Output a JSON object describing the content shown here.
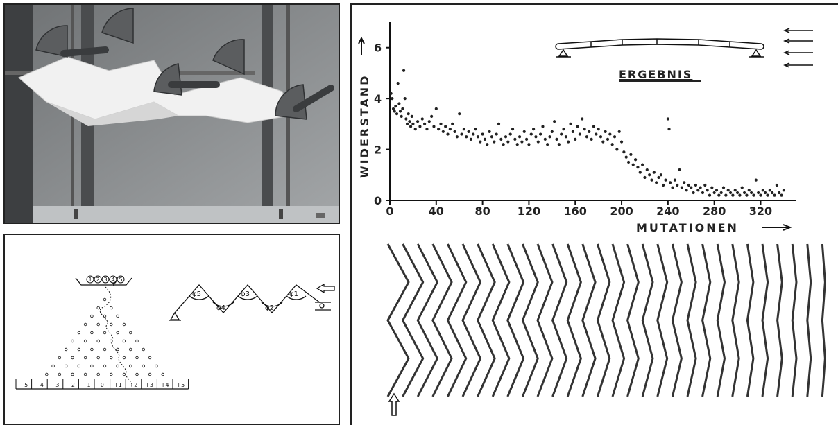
{
  "chart_data": {
    "type": "scatter",
    "title": "ERGEBNIS",
    "xlabel": "MUTATIONEN",
    "ylabel": "WIDERSTAND",
    "xlim": [
      0,
      345
    ],
    "ylim": [
      0,
      7
    ],
    "xticks": [
      "0",
      "40",
      "80",
      "120",
      "160",
      "200",
      "240",
      "280",
      "320"
    ],
    "yticks": [
      "0",
      "2",
      "4",
      "6"
    ],
    "series": [
      {
        "points": [
          [
            1,
            4.2
          ],
          [
            2,
            4.0
          ],
          [
            3,
            3.6
          ],
          [
            4,
            3.5
          ],
          [
            5,
            3.7
          ],
          [
            6,
            3.4
          ],
          [
            7,
            4.6
          ],
          [
            8,
            3.8
          ],
          [
            9,
            3.5
          ],
          [
            10,
            3.3
          ],
          [
            11,
            3.6
          ],
          [
            12,
            5.1
          ],
          [
            13,
            4.0
          ],
          [
            14,
            3.2
          ],
          [
            15,
            3.0
          ],
          [
            16,
            3.4
          ],
          [
            17,
            3.1
          ],
          [
            18,
            2.9
          ],
          [
            19,
            3.3
          ],
          [
            20,
            3.0
          ],
          [
            22,
            2.8
          ],
          [
            24,
            3.1
          ],
          [
            26,
            2.9
          ],
          [
            28,
            3.2
          ],
          [
            30,
            3.0
          ],
          [
            32,
            2.8
          ],
          [
            34,
            3.1
          ],
          [
            36,
            3.3
          ],
          [
            38,
            2.9
          ],
          [
            40,
            3.6
          ],
          [
            42,
            2.8
          ],
          [
            44,
            3.0
          ],
          [
            46,
            2.7
          ],
          [
            48,
            2.9
          ],
          [
            50,
            2.6
          ],
          [
            52,
            2.8
          ],
          [
            54,
            3.0
          ],
          [
            56,
            2.7
          ],
          [
            58,
            2.5
          ],
          [
            60,
            3.4
          ],
          [
            62,
            2.6
          ],
          [
            64,
            2.8
          ],
          [
            66,
            2.5
          ],
          [
            68,
            2.7
          ],
          [
            70,
            2.4
          ],
          [
            72,
            2.6
          ],
          [
            74,
            2.8
          ],
          [
            76,
            2.5
          ],
          [
            78,
            2.3
          ],
          [
            80,
            2.6
          ],
          [
            82,
            2.4
          ],
          [
            84,
            2.2
          ],
          [
            86,
            2.7
          ],
          [
            88,
            2.5
          ],
          [
            90,
            2.3
          ],
          [
            92,
            2.6
          ],
          [
            94,
            3.0
          ],
          [
            96,
            2.4
          ],
          [
            98,
            2.2
          ],
          [
            100,
            2.5
          ],
          [
            102,
            2.3
          ],
          [
            104,
            2.6
          ],
          [
            106,
            2.8
          ],
          [
            108,
            2.4
          ],
          [
            110,
            2.2
          ],
          [
            112,
            2.5
          ],
          [
            114,
            2.3
          ],
          [
            116,
            2.7
          ],
          [
            118,
            2.4
          ],
          [
            120,
            2.2
          ],
          [
            122,
            2.6
          ],
          [
            124,
            2.8
          ],
          [
            126,
            2.5
          ],
          [
            128,
            2.3
          ],
          [
            130,
            2.6
          ],
          [
            132,
            2.9
          ],
          [
            134,
            2.4
          ],
          [
            136,
            2.2
          ],
          [
            138,
            2.5
          ],
          [
            140,
            2.7
          ],
          [
            142,
            3.1
          ],
          [
            144,
            2.4
          ],
          [
            146,
            2.2
          ],
          [
            148,
            2.6
          ],
          [
            150,
            2.8
          ],
          [
            152,
            2.5
          ],
          [
            154,
            2.3
          ],
          [
            156,
            3.0
          ],
          [
            158,
            2.7
          ],
          [
            160,
            2.4
          ],
          [
            162,
            2.9
          ],
          [
            164,
            2.6
          ],
          [
            166,
            3.2
          ],
          [
            168,
            2.8
          ],
          [
            170,
            2.5
          ],
          [
            172,
            2.7
          ],
          [
            174,
            2.4
          ],
          [
            176,
            2.9
          ],
          [
            178,
            2.6
          ],
          [
            180,
            2.8
          ],
          [
            182,
            2.5
          ],
          [
            184,
            2.3
          ],
          [
            186,
            2.7
          ],
          [
            188,
            2.4
          ],
          [
            190,
            2.6
          ],
          [
            192,
            2.2
          ],
          [
            194,
            2.5
          ],
          [
            196,
            2.0
          ],
          [
            198,
            2.7
          ],
          [
            200,
            2.3
          ],
          [
            202,
            1.9
          ],
          [
            204,
            1.7
          ],
          [
            206,
            1.5
          ],
          [
            208,
            1.8
          ],
          [
            210,
            1.4
          ],
          [
            212,
            1.6
          ],
          [
            214,
            1.3
          ],
          [
            216,
            1.1
          ],
          [
            218,
            1.4
          ],
          [
            220,
            0.9
          ],
          [
            222,
            1.2
          ],
          [
            224,
            1.0
          ],
          [
            226,
            0.8
          ],
          [
            228,
            1.1
          ],
          [
            230,
            0.7
          ],
          [
            232,
            0.9
          ],
          [
            234,
            1.0
          ],
          [
            236,
            0.6
          ],
          [
            238,
            0.8
          ],
          [
            240,
            3.2
          ],
          [
            241,
            2.8
          ],
          [
            242,
            0.7
          ],
          [
            244,
            0.5
          ],
          [
            246,
            0.8
          ],
          [
            248,
            0.6
          ],
          [
            250,
            1.2
          ],
          [
            252,
            0.5
          ],
          [
            254,
            0.7
          ],
          [
            256,
            0.4
          ],
          [
            258,
            0.6
          ],
          [
            260,
            0.5
          ],
          [
            262,
            0.3
          ],
          [
            264,
            0.6
          ],
          [
            266,
            0.4
          ],
          [
            268,
            0.5
          ],
          [
            270,
            0.3
          ],
          [
            272,
            0.6
          ],
          [
            274,
            0.4
          ],
          [
            276,
            0.2
          ],
          [
            278,
            0.5
          ],
          [
            280,
            0.3
          ],
          [
            282,
            0.4
          ],
          [
            284,
            0.2
          ],
          [
            286,
            0.3
          ],
          [
            288,
            0.5
          ],
          [
            290,
            0.2
          ],
          [
            292,
            0.4
          ],
          [
            294,
            0.3
          ],
          [
            296,
            0.2
          ],
          [
            298,
            0.4
          ],
          [
            300,
            0.3
          ],
          [
            302,
            0.2
          ],
          [
            304,
            0.5
          ],
          [
            306,
            0.3
          ],
          [
            308,
            0.2
          ],
          [
            310,
            0.4
          ],
          [
            312,
            0.3
          ],
          [
            314,
            0.2
          ],
          [
            316,
            0.8
          ],
          [
            318,
            0.3
          ],
          [
            320,
            0.2
          ],
          [
            322,
            0.4
          ],
          [
            324,
            0.3
          ],
          [
            326,
            0.2
          ],
          [
            328,
            0.4
          ],
          [
            330,
            0.3
          ],
          [
            332,
            0.2
          ],
          [
            334,
            0.6
          ],
          [
            336,
            0.3
          ],
          [
            338,
            0.2
          ],
          [
            340,
            0.4
          ]
        ]
      }
    ]
  },
  "galton": {
    "phi": "φ",
    "selector_numbers": [
      "1",
      "2",
      "3",
      "4",
      "5"
    ],
    "bins": [
      "−5",
      "−4",
      "−3",
      "−2",
      "−1",
      "0",
      "+1",
      "+2",
      "+3",
      "+4",
      "+5"
    ]
  },
  "mechanism": {
    "angles": [
      "φ5",
      "φ4",
      "φ3",
      "φ2",
      "φ1"
    ]
  },
  "plate_profiles_count": 30
}
